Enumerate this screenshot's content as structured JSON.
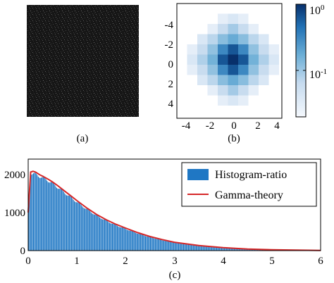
{
  "panels": {
    "a": {
      "caption": "(a)"
    },
    "b": {
      "caption": "(b)",
      "x_ticks": [
        "-4",
        "-2",
        "0",
        "2",
        "4"
      ],
      "y_ticks": [
        "-4",
        "-2",
        "0",
        "2",
        "4"
      ],
      "colorbar": {
        "scale": "log",
        "tick_base": "10",
        "top_exponent": "0",
        "bottom_exponent": "-1"
      }
    },
    "c": {
      "caption": "(c)"
    }
  },
  "chart_data": [
    {
      "type": "heatmap",
      "panel": "b",
      "x": [
        -5,
        -4,
        -3,
        -2,
        -1,
        0,
        1,
        2,
        3,
        4,
        5
      ],
      "y": [
        -5,
        -4,
        -3,
        -2,
        -1,
        0,
        1,
        2,
        3,
        4,
        5
      ],
      "color_scale": "log",
      "colormap": [
        "#f4f8fd",
        "#c6dbef",
        "#6baed6",
        "#2171b5",
        "#08306b"
      ],
      "values": [
        [
          0.03,
          0.03,
          0.03,
          0.03,
          0.03,
          0.03,
          0.03,
          0.03,
          0.03,
          0.03,
          0.03
        ],
        [
          0.03,
          0.03,
          0.03,
          0.03,
          0.04,
          0.05,
          0.04,
          0.03,
          0.03,
          0.03,
          0.03
        ],
        [
          0.03,
          0.03,
          0.03,
          0.04,
          0.07,
          0.1,
          0.07,
          0.04,
          0.03,
          0.03,
          0.03
        ],
        [
          0.03,
          0.03,
          0.05,
          0.08,
          0.13,
          0.18,
          0.13,
          0.08,
          0.05,
          0.03,
          0.03
        ],
        [
          0.03,
          0.04,
          0.07,
          0.12,
          0.3,
          0.6,
          0.3,
          0.12,
          0.07,
          0.04,
          0.03
        ],
        [
          0.03,
          0.05,
          0.09,
          0.16,
          0.6,
          1.0,
          0.6,
          0.16,
          0.09,
          0.05,
          0.03
        ],
        [
          0.03,
          0.04,
          0.07,
          0.12,
          0.3,
          0.6,
          0.3,
          0.12,
          0.07,
          0.04,
          0.03
        ],
        [
          0.03,
          0.03,
          0.05,
          0.08,
          0.13,
          0.18,
          0.13,
          0.08,
          0.05,
          0.03,
          0.03
        ],
        [
          0.03,
          0.03,
          0.03,
          0.04,
          0.07,
          0.1,
          0.07,
          0.04,
          0.03,
          0.03,
          0.03
        ],
        [
          0.03,
          0.03,
          0.03,
          0.03,
          0.04,
          0.05,
          0.04,
          0.03,
          0.03,
          0.03,
          0.03
        ],
        [
          0.03,
          0.03,
          0.03,
          0.03,
          0.03,
          0.03,
          0.03,
          0.03,
          0.03,
          0.03,
          0.03
        ]
      ]
    },
    {
      "type": "bar",
      "panel": "c",
      "xlim": [
        0,
        6
      ],
      "ylim": [
        0,
        2400
      ],
      "x_ticks": [
        "0",
        "1",
        "2",
        "3",
        "4",
        "5",
        "6"
      ],
      "y_ticks": [
        "0",
        "1000",
        "2000"
      ],
      "legend_position": "top-right",
      "series": [
        {
          "name": "Histogram-ratio",
          "color": "#1f77c4",
          "x": [
            0.0,
            0.05,
            0.1,
            0.15,
            0.2,
            0.25,
            0.3,
            0.4,
            0.5,
            0.6,
            0.7,
            0.8,
            0.9,
            1.0,
            1.2,
            1.4,
            1.6,
            1.8,
            2.0,
            2.25,
            2.5,
            2.75,
            3.0,
            3.5,
            4.0,
            4.5,
            5.0,
            6.0
          ],
          "values": [
            1000,
            2070,
            2060,
            2040,
            2010,
            1980,
            1950,
            1880,
            1800,
            1700,
            1600,
            1500,
            1400,
            1300,
            1110,
            940,
            800,
            680,
            580,
            460,
            360,
            280,
            215,
            130,
            75,
            40,
            20,
            5
          ]
        },
        {
          "name": "Gamma-theory",
          "color": "#d62728",
          "x": [
            0.0,
            0.05,
            0.1,
            0.15,
            0.2,
            0.25,
            0.3,
            0.4,
            0.5,
            0.6,
            0.7,
            0.8,
            0.9,
            1.0,
            1.2,
            1.4,
            1.6,
            1.8,
            2.0,
            2.25,
            2.5,
            2.75,
            3.0,
            3.5,
            4.0,
            4.5,
            5.0,
            6.0
          ],
          "values": [
            1000,
            2060,
            2080,
            2060,
            2020,
            1980,
            1950,
            1880,
            1800,
            1710,
            1610,
            1510,
            1410,
            1310,
            1120,
            950,
            810,
            690,
            590,
            470,
            370,
            290,
            220,
            135,
            78,
            42,
            22,
            6
          ]
        }
      ]
    }
  ]
}
